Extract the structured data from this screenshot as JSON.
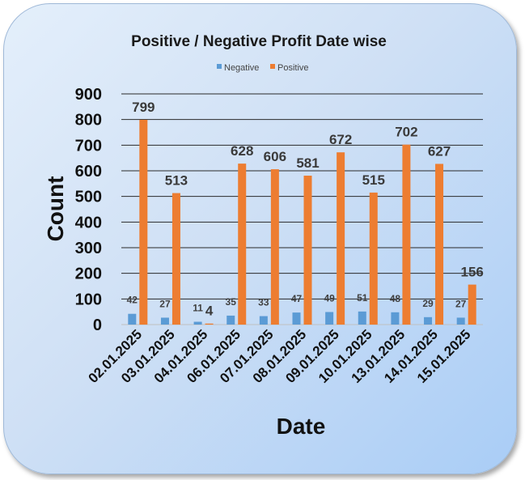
{
  "chart_data": {
    "type": "bar",
    "title": "Positive / Negative Profit Date wise",
    "xlabel": "Date",
    "ylabel": "Count",
    "ylim": [
      0,
      900
    ],
    "yticks": [
      "0",
      "100",
      "200",
      "300",
      "400",
      "500",
      "600",
      "700",
      "800",
      "900"
    ],
    "categories": [
      "02.01.2025",
      "03.01.2025",
      "04.01.2025",
      "06.01.2025",
      "07.01.2025",
      "08.01.2025",
      "09.01.2025",
      "10.01.2025",
      "13.01.2025",
      "14.01.2025",
      "15.01.2025"
    ],
    "series": [
      {
        "name": "Negative",
        "color": "#5b9bd5",
        "values": [
          42,
          27,
          11,
          35,
          33,
          47,
          49,
          51,
          48,
          29,
          27
        ]
      },
      {
        "name": "Positive",
        "color": "#ed7d31",
        "values": [
          799,
          513,
          4,
          628,
          606,
          581,
          672,
          515,
          702,
          627,
          156
        ]
      }
    ],
    "grid": true,
    "legend": "top-center"
  }
}
